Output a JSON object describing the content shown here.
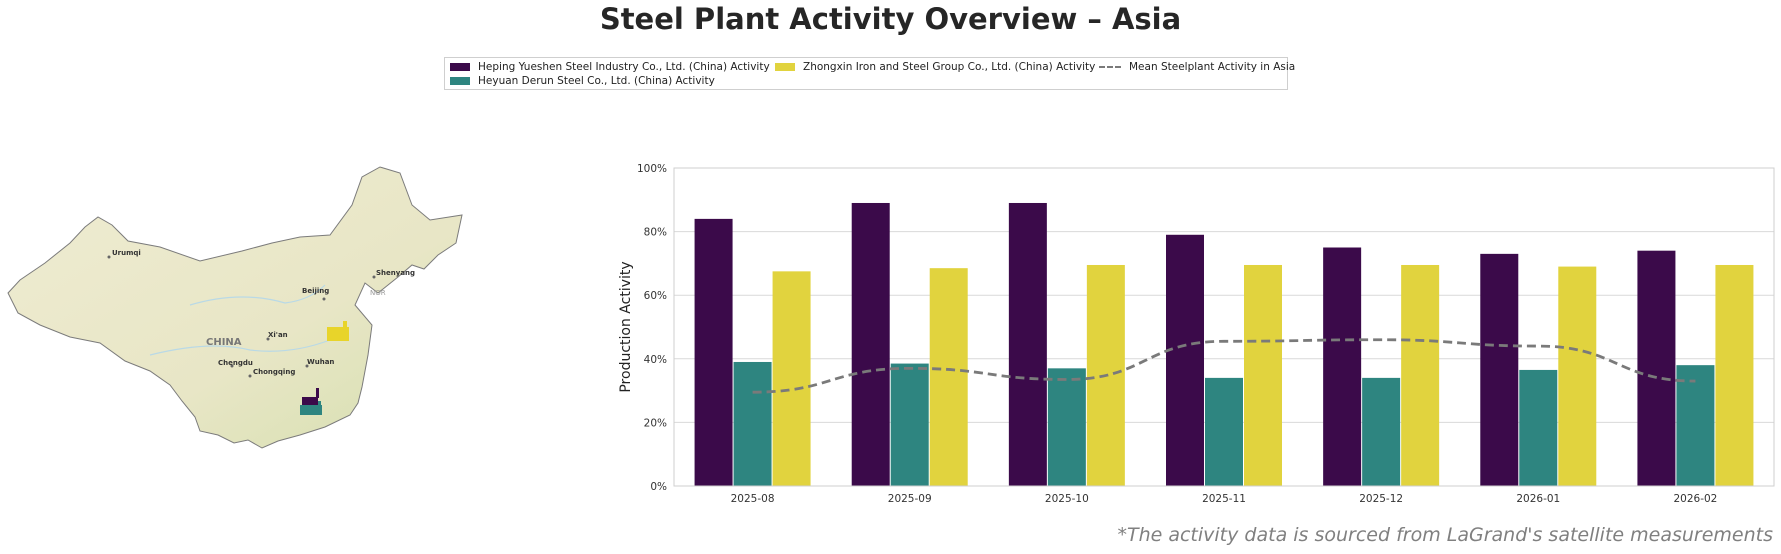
{
  "title": "Steel Plant Activity Overview – Asia",
  "legend": {
    "items": [
      {
        "label": "Heping Yueshen Steel Industry Co., Ltd. (China) Activity",
        "color": "#3b0a4a",
        "kind": "bar"
      },
      {
        "label": "Heyuan Derun Steel Co., Ltd. (China) Activity",
        "color": "#2e8580",
        "kind": "bar"
      },
      {
        "label": "Zhongxin Iron and Steel Group Co., Ltd. (China) Activity",
        "color": "#e1d33e",
        "kind": "bar"
      },
      {
        "label": "Mean Steelplant Activity in Asia",
        "color": "#7a7a7a",
        "kind": "dashed-line"
      }
    ]
  },
  "map": {
    "country_label": "CHINA",
    "cities": [
      "Urumqi",
      "Beijing",
      "Shenyang",
      "Xi'an",
      "Chengdu",
      "Chongqing",
      "Wuhan"
    ],
    "region_label": "NOR"
  },
  "chart_data": {
    "type": "bar",
    "categories": [
      "2025-08",
      "2025-09",
      "2025-10",
      "2025-11",
      "2025-12",
      "2026-01",
      "2026-02"
    ],
    "series": [
      {
        "name": "Heping Yueshen Steel Industry Co., Ltd. (China) Activity",
        "color": "#3b0a4a",
        "values": [
          84,
          89,
          89,
          79,
          75,
          73,
          74
        ]
      },
      {
        "name": "Heyuan Derun Steel Co., Ltd. (China) Activity",
        "color": "#2e8580",
        "values": [
          39,
          38.5,
          37,
          34,
          34,
          36.5,
          38
        ]
      },
      {
        "name": "Zhongxin Iron and Steel Group Co., Ltd. (China) Activity",
        "color": "#e1d33e",
        "values": [
          67.5,
          68.5,
          69.5,
          69.5,
          69.5,
          69,
          69.5
        ]
      }
    ],
    "mean_line": {
      "name": "Mean Steelplant Activity in Asia",
      "color": "#7a7a7a",
      "values": [
        29.5,
        37,
        33.5,
        45.5,
        46,
        44,
        33
      ]
    },
    "ylabel": "Production Activity",
    "xlabel": "",
    "ylim": [
      0,
      100
    ],
    "yticks": [
      "0%",
      "20%",
      "40%",
      "60%",
      "80%",
      "100%"
    ],
    "grid": true
  },
  "footnote": "*The activity data is sourced from LaGrand's satellite measurements"
}
